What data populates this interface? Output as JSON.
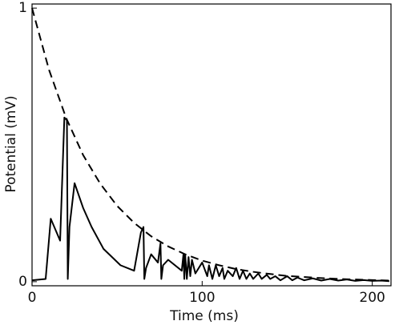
{
  "chart_data": {
    "type": "line",
    "x_label": "Time (ms)",
    "y_label": "Potential (mV)",
    "xlim": [
      0,
      211
    ],
    "ylim": [
      -0.015,
      1.015
    ],
    "xticks": [
      0,
      100,
      200
    ],
    "yticks": [
      0,
      1
    ],
    "series": [
      {
        "color": "#000000",
        "line_style": "dashed",
        "x": [
          0,
          10,
          20,
          30,
          40,
          50,
          60,
          70,
          80,
          90,
          100,
          110,
          120,
          130,
          140,
          150,
          160,
          170,
          180,
          190,
          200,
          210
        ],
        "values": [
          1,
          0.774,
          0.599,
          0.463,
          0.359,
          0.277,
          0.215,
          0.166,
          0.129,
          0.1,
          0.077,
          0.06,
          0.046,
          0.036,
          0.028,
          0.021,
          0.017,
          0.013,
          0.01,
          0.008,
          0.006,
          0.004
        ]
      },
      {
        "color": "#000000",
        "line_style": "solid",
        "x": [
          0,
          8,
          11,
          16.5,
          19,
          20.5,
          21,
          22,
          25,
          30,
          35,
          42,
          52,
          60,
          64,
          65.5,
          66,
          67,
          70,
          74,
          75.5,
          76,
          77,
          80,
          88,
          89,
          89.5,
          90,
          91,
          92,
          93,
          94,
          96,
          100,
          103,
          104,
          106,
          108,
          110,
          112,
          113,
          115,
          118,
          120,
          122,
          124,
          126,
          128,
          130,
          133,
          135,
          138,
          140,
          143,
          146,
          150,
          153,
          156,
          160,
          165,
          170,
          175,
          180,
          185,
          190,
          195,
          200,
          205,
          210
        ],
        "values": [
          0.005,
          0.01,
          0.23,
          0.15,
          0.6,
          0.59,
          0.01,
          0.2,
          0.36,
          0.27,
          0.2,
          0.12,
          0.06,
          0.04,
          0.18,
          0.2,
          0.01,
          0.05,
          0.1,
          0.07,
          0.14,
          0.01,
          0.06,
          0.08,
          0.04,
          0.1,
          0.01,
          0.1,
          0.01,
          0.09,
          0.02,
          0.08,
          0.03,
          0.07,
          0.02,
          0.06,
          0.01,
          0.06,
          0.02,
          0.05,
          0.01,
          0.04,
          0.02,
          0.05,
          0.01,
          0.04,
          0.01,
          0.03,
          0.01,
          0.03,
          0.01,
          0.025,
          0.01,
          0.02,
          0.005,
          0.02,
          0.005,
          0.015,
          0.005,
          0.012,
          0.004,
          0.01,
          0.004,
          0.008,
          0.003,
          0.006,
          0.003,
          0.004,
          0.002
        ]
      }
    ]
  }
}
